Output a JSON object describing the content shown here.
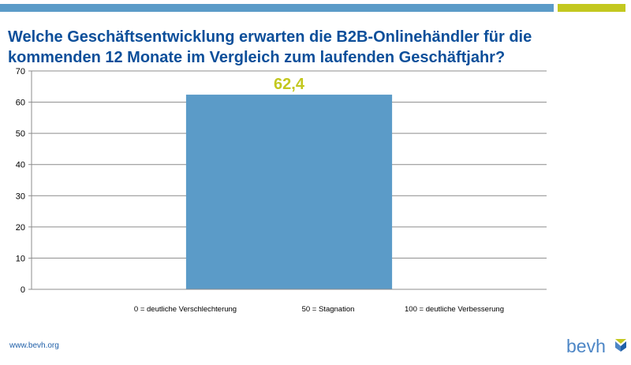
{
  "title": "Welche Geschäftsentwicklung erwarten die B2B-Onlinehändler für die kommenden 12 Monate im Vergleich zum laufenden Geschäftjahr?",
  "footer": {
    "url": "www.bevh.org",
    "logo_text": "bevh"
  },
  "colors": {
    "bar": "#5b9bc8",
    "label": "#c3c81f",
    "title": "#0d4f9a",
    "accent_blue": "#5b9bc8",
    "accent_lime": "#c3c81f"
  },
  "chart_data": {
    "type": "bar",
    "x_tick_labels": [
      "0 = deutliche Verschlechterung",
      "50 = Stagnation",
      "100 = deutliche Verbesserung"
    ],
    "bars": [
      {
        "x": 50,
        "value": 62.4,
        "label": "62,4"
      }
    ],
    "xlim": [
      0,
      100
    ],
    "ylim": [
      0,
      70
    ],
    "yticks": [
      0,
      10,
      20,
      30,
      40,
      50,
      60,
      70
    ],
    "grid": true
  }
}
